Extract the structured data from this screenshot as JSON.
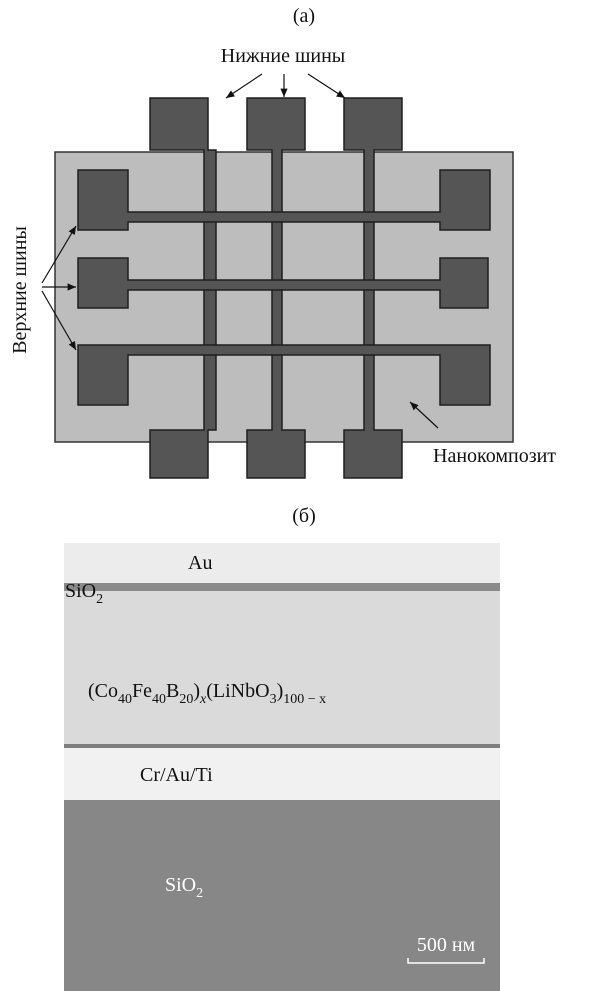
{
  "panel_a": {
    "label": "(а)",
    "bottom_buses": "Нижние шины",
    "top_buses": "Верхние шины",
    "nanocomposite": "Нанокомпозит"
  },
  "panel_b": {
    "label": "(б)",
    "layers": [
      {
        "label": [
          {
            "text": "Au"
          }
        ]
      },
      {
        "label": [
          {
            "text": "SiO"
          },
          {
            "sub": "2"
          }
        ]
      },
      {
        "label": [
          {
            "text": "(Co"
          },
          {
            "sub": "40"
          },
          {
            "text": "Fe"
          },
          {
            "sub": "40"
          },
          {
            "text": "B"
          },
          {
            "sub": "20"
          },
          {
            "text": ")"
          },
          {
            "sub": "x"
          },
          {
            "text": "(LiNbO"
          },
          {
            "sub": "3"
          },
          {
            "text": ")"
          },
          {
            "sub": "100 − x"
          }
        ]
      },
      {
        "label": [
          {
            "text": "Cr/Au/Ti"
          }
        ]
      },
      {
        "label": [
          {
            "text": "SiO"
          },
          {
            "sub": "2"
          }
        ]
      }
    ],
    "scale_bar": "500 нм"
  }
}
